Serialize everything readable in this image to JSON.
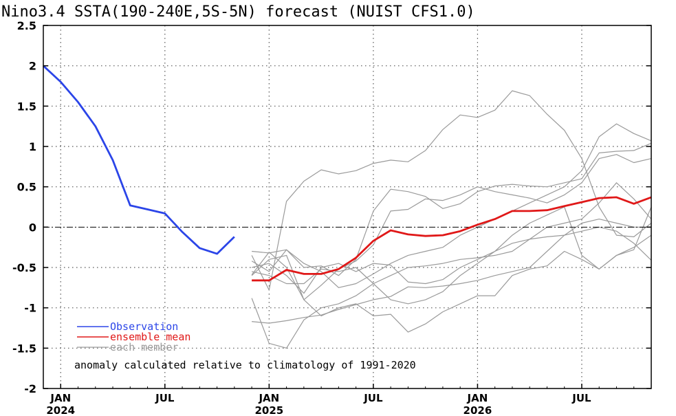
{
  "chart_data": {
    "type": "line",
    "title": "Nino3.4 SSTA(190-240E,5S-5N) forecast (NUIST CFS1.0)",
    "ylim": [
      -2,
      2.5
    ],
    "yticks": [
      "2.5",
      "2",
      "1.5",
      "1",
      "0.5",
      "0",
      "-0.5",
      "-1",
      "-1.5",
      "-2"
    ],
    "xlim": [
      "2023-12",
      "2026-11"
    ],
    "xticks": [
      {
        "month": "2024-01",
        "label": "JAN",
        "year": "2024"
      },
      {
        "month": "2024-07",
        "label": "JUL",
        "year": ""
      },
      {
        "month": "2025-01",
        "label": "JAN",
        "year": "2025"
      },
      {
        "month": "2025-07",
        "label": "JUL",
        "year": ""
      },
      {
        "month": "2026-01",
        "label": "JAN",
        "year": "2026"
      },
      {
        "month": "2026-07",
        "label": "JUL",
        "year": ""
      }
    ],
    "grid": true,
    "zero_line": true,
    "legend_position": "bottom-left",
    "legend": [
      {
        "label": "Observation",
        "color": "#2b45e8"
      },
      {
        "label": "ensemble mean",
        "color": "#e01818"
      },
      {
        "label": "each member",
        "color": "#9a9a9a"
      }
    ],
    "annotation": "anomaly calculated relative to climatology of 1991-2020",
    "observation": {
      "x": [
        "2023-12",
        "2024-01",
        "2024-02",
        "2024-03",
        "2024-04",
        "2024-05",
        "2024-06",
        "2024-07",
        "2024-08",
        "2024-09",
        "2024-10",
        "2024-11"
      ],
      "y": [
        2.0,
        1.8,
        1.55,
        1.25,
        0.83,
        0.27,
        0.22,
        0.17,
        -0.06,
        -0.26,
        -0.33,
        -0.12
      ]
    },
    "ensemble_mean": {
      "x": [
        "2024-12",
        "2025-01",
        "2025-02",
        "2025-03",
        "2025-04",
        "2025-05",
        "2025-06",
        "2025-07",
        "2025-08",
        "2025-09",
        "2025-10",
        "2025-11",
        "2025-12",
        "2026-01",
        "2026-02",
        "2026-03",
        "2026-04",
        "2026-05",
        "2026-06",
        "2026-07",
        "2026-08",
        "2026-09",
        "2026-10",
        "2026-11"
      ],
      "y": [
        -0.66,
        -0.66,
        -0.53,
        -0.58,
        -0.58,
        -0.52,
        -0.38,
        -0.17,
        -0.04,
        -0.09,
        -0.11,
        -0.1,
        -0.05,
        0.03,
        0.1,
        0.2,
        0.2,
        0.21,
        0.26,
        0.31,
        0.36,
        0.37,
        0.29,
        0.37
      ]
    },
    "members": [
      {
        "y": [
          -0.3,
          -0.32,
          -0.28,
          -0.45,
          -0.55,
          -0.75,
          -0.7,
          -0.58,
          -0.45,
          -0.35,
          -0.3,
          -0.25,
          -0.1,
          0.0,
          0.1,
          0.2,
          0.3,
          0.4,
          0.5,
          0.7,
          1.12,
          1.28,
          1.16,
          1.07
        ]
      },
      {
        "y": [
          -0.35,
          -0.78,
          0.32,
          0.57,
          0.71,
          0.66,
          0.7,
          0.79,
          0.83,
          0.81,
          0.95,
          1.21,
          1.39,
          1.36,
          1.45,
          1.69,
          1.63,
          1.4,
          1.2,
          0.85,
          0.25,
          -0.1,
          -0.12,
          0.05
        ]
      },
      {
        "y": [
          -0.42,
          -0.55,
          -0.28,
          -0.5,
          -0.48,
          -0.6,
          -0.4,
          0.2,
          0.47,
          0.44,
          0.38,
          0.23,
          0.29,
          0.44,
          0.51,
          0.53,
          0.51,
          0.5,
          0.55,
          0.6,
          0.92,
          0.94,
          0.95,
          1.04
        ]
      },
      {
        "y": [
          -0.59,
          -0.31,
          -0.5,
          -0.9,
          -0.72,
          -0.52,
          -0.42,
          -0.22,
          0.2,
          0.22,
          0.35,
          0.33,
          0.4,
          0.5,
          0.44,
          0.4,
          0.36,
          0.3,
          0.4,
          0.55,
          0.85,
          0.9,
          0.8,
          0.85
        ]
      },
      {
        "y": [
          -0.88,
          -1.44,
          -1.5,
          -1.15,
          -1.0,
          -0.95,
          -0.85,
          -0.7,
          -0.6,
          -0.5,
          -0.48,
          -0.45,
          -0.4,
          -0.38,
          -0.35,
          -0.3,
          -0.15,
          0.0,
          0.05,
          0.1,
          0.3,
          0.55,
          0.35,
          0.1
        ]
      },
      {
        "y": [
          -1.17,
          -1.19,
          -1.16,
          -1.12,
          -1.09,
          -1.02,
          -0.96,
          -0.9,
          -0.86,
          -0.74,
          -0.75,
          -0.73,
          -0.7,
          -0.66,
          -0.6,
          -0.55,
          -0.5,
          -0.3,
          -0.1,
          0.05,
          0.1,
          0.05,
          0.0,
          0.0
        ]
      },
      {
        "y": [
          -0.5,
          -0.45,
          -0.6,
          -0.82,
          -0.5,
          -0.45,
          -0.55,
          -0.45,
          -0.47,
          -0.68,
          -0.7,
          -0.65,
          -0.5,
          -0.4,
          -0.3,
          -0.2,
          -0.15,
          -0.12,
          -0.1,
          -0.05,
          0.0,
          -0.05,
          -0.2,
          -0.41
        ]
      },
      {
        "y": [
          -0.6,
          -0.4,
          -0.35,
          -0.9,
          -1.1,
          -1.0,
          -0.95,
          -1.1,
          -1.08,
          -1.3,
          -1.2,
          -1.05,
          -0.95,
          -0.85,
          -0.85,
          -0.6,
          -0.52,
          -0.48,
          -0.3,
          -0.4,
          -0.52,
          -0.35,
          -0.25,
          -0.1
        ]
      },
      {
        "y": [
          -0.55,
          -0.6,
          -0.7,
          -0.7,
          -0.52,
          -0.55,
          -0.5,
          -0.7,
          -0.9,
          -0.95,
          -0.9,
          -0.8,
          -0.6,
          -0.45,
          -0.3,
          -0.1,
          0.05,
          0.15,
          0.25,
          -0.35,
          -0.52,
          -0.35,
          -0.28,
          0.25
        ]
      }
    ]
  }
}
